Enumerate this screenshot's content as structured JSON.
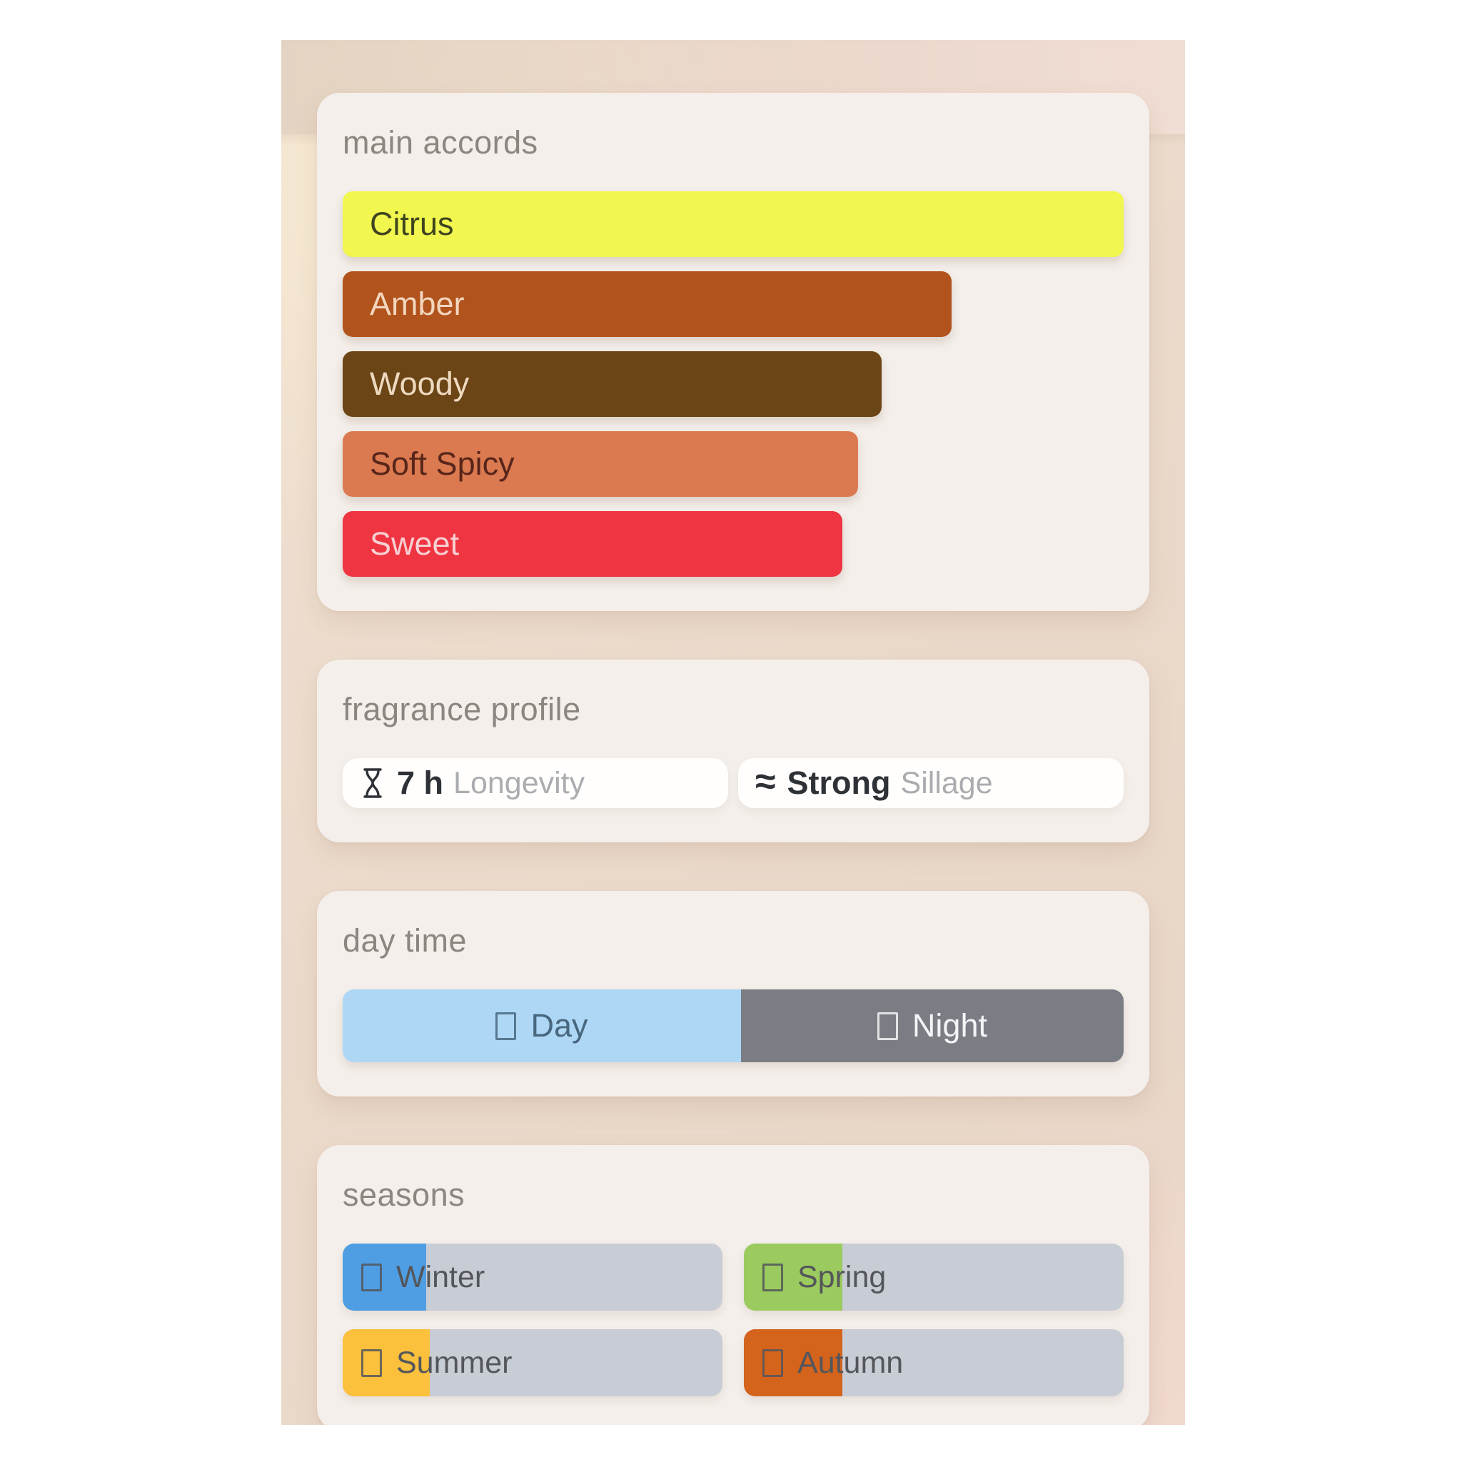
{
  "theme": {
    "page_bg": "#ffffff",
    "app_bg_top": "#f0e1d2",
    "app_bg_bottom": "#e7d5c6",
    "topbar_tint_left": "#e4d5ca",
    "topbar_tint_right": "#f2e2da",
    "card_bg": "#f4efeb",
    "section_title_color": "#8c8680",
    "season_track_color": "#c8ccd4"
  },
  "sections": {
    "main_accords": {
      "title": "main accords",
      "accords": [
        {
          "label": "Citrus",
          "width_pct": 100,
          "bg": "#f1f74e",
          "text": "#3f441f"
        },
        {
          "label": "Amber",
          "width_pct": 78,
          "bg": "#b1531c",
          "text": "#f3d6be"
        },
        {
          "label": "Woody",
          "width_pct": 69,
          "bg": "#6c4517",
          "text": "#eedac0"
        },
        {
          "label": "Soft Spicy",
          "width_pct": 66,
          "bg": "#db7a50",
          "text": "#58251a"
        },
        {
          "label": "Sweet",
          "width_pct": 64,
          "bg": "#ee3541",
          "text": "#f8cfd3"
        }
      ]
    },
    "fragrance_profile": {
      "title": "fragrance profile",
      "stats": [
        {
          "icon": "hourglass-icon",
          "value": "7 h",
          "label": "Longevity"
        },
        {
          "icon": "waves-icon",
          "glyph": "≈",
          "value": "Strong",
          "label": "Sillage"
        }
      ]
    },
    "day_time": {
      "title": "day time",
      "segments": [
        {
          "label": "Day",
          "icon": "missing-glyph-box",
          "width_pct": 51,
          "bg": "#aed7f5",
          "text": "#48677e"
        },
        {
          "label": "Night",
          "icon": "missing-glyph-box",
          "width_pct": 49,
          "bg": "#7b7d84",
          "text": "#f3f4f6"
        }
      ]
    },
    "seasons": {
      "title": "seasons",
      "items": [
        {
          "label": "Winter",
          "icon": "missing-glyph-box",
          "fill_pct": 22,
          "fill": "#4f9ee3"
        },
        {
          "label": "Spring",
          "icon": "missing-glyph-box",
          "fill_pct": 26,
          "fill": "#9bca5e"
        },
        {
          "label": "Summer",
          "icon": "missing-glyph-box",
          "fill_pct": 23,
          "fill": "#fbc03c"
        },
        {
          "label": "Autumn",
          "icon": "missing-glyph-box",
          "fill_pct": 26,
          "fill": "#d4631c"
        }
      ]
    }
  }
}
